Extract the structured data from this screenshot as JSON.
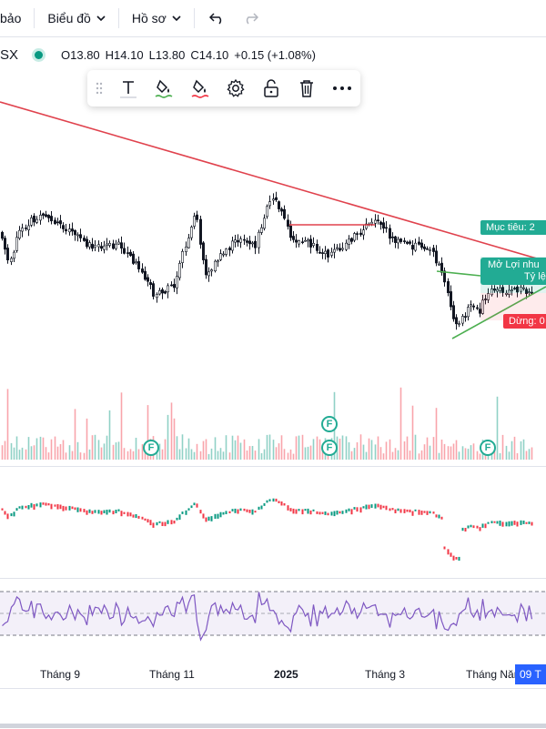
{
  "topbar": {
    "alerts_label": "bảo",
    "chart_label": "Biểu đồ",
    "profile_label": "Hồ sơ"
  },
  "legend": {
    "symbol": "SX",
    "open": "O13.80",
    "high": "H14.10",
    "low": "L13.80",
    "close": "C14.10",
    "change": "+0.15 (+1.08%)"
  },
  "drawing_toolbar": {
    "icons": [
      "drag-handle-icon",
      "text-icon",
      "line-color-icon",
      "fill-color-icon",
      "settings-icon",
      "lock-icon",
      "trash-icon",
      "more-icon"
    ]
  },
  "position_tool": {
    "target_label": "Mục tiêu: 2",
    "profit_label": "Mở Lợi nhu",
    "ratio_label": "Tỷ lệ",
    "stop_label": "Dừng: 0"
  },
  "events": [
    "F",
    "F",
    "F",
    "F",
    "F"
  ],
  "x_axis": {
    "labels": [
      "Tháng 9",
      "Tháng 11",
      "2025",
      "Tháng 3",
      "Tháng Năm"
    ],
    "current_date_label": "09 T"
  },
  "colors": {
    "up": "#089981",
    "down": "#f23645",
    "candle": "#131722",
    "trendline": "#e0424d",
    "rsi": "#7e57c2",
    "target": "#22ab94",
    "stop": "#f23645"
  }
}
